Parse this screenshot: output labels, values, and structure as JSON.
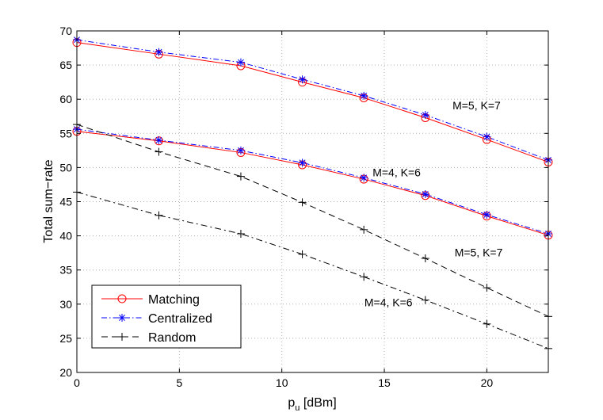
{
  "chart_data": {
    "type": "line",
    "xlabel": "p",
    "xlabel_sub": "u",
    "xlabel_unit": "[dBm]",
    "ylabel": "Total sum−rate",
    "xlim": [
      0,
      23
    ],
    "ylim": [
      20,
      70
    ],
    "xticks": [
      0,
      5,
      10,
      15,
      20
    ],
    "yticks": [
      20,
      25,
      30,
      35,
      40,
      45,
      50,
      55,
      60,
      65,
      70
    ],
    "grid": true,
    "legend_position": "bottom-left",
    "legend": [
      {
        "label": "Matching",
        "style": "matching"
      },
      {
        "label": "Centralized",
        "style": "centralized"
      },
      {
        "label": "Random",
        "style": "random"
      }
    ],
    "x": [
      0,
      4,
      8,
      11,
      14,
      17,
      20,
      23
    ],
    "series": [
      {
        "style": "matching",
        "values": [
          68.3,
          66.6,
          64.9,
          62.5,
          60.2,
          57.3,
          54.1,
          50.8
        ]
      },
      {
        "style": "centralized",
        "values": [
          68.7,
          66.9,
          65.4,
          62.9,
          60.5,
          57.7,
          54.5,
          51.1
        ]
      },
      {
        "style": "matching",
        "values": [
          55.3,
          53.9,
          52.2,
          50.4,
          48.3,
          45.9,
          42.9,
          40.1
        ]
      },
      {
        "style": "centralized",
        "values": [
          55.6,
          54.0,
          52.5,
          50.7,
          48.5,
          46.1,
          43.1,
          40.3
        ]
      },
      {
        "style": "random_dashed",
        "values": [
          56.3,
          52.3,
          48.7,
          44.9,
          40.9,
          36.7,
          32.4,
          28.2
        ]
      },
      {
        "style": "random_dashdot",
        "values": [
          46.4,
          43.0,
          40.3,
          37.3,
          34.0,
          30.6,
          27.1,
          23.5
        ]
      }
    ],
    "annotations": [
      {
        "text": "M=5, K=7",
        "x": 19.5,
        "y": 58.5
      },
      {
        "text": "M=4, K=6",
        "x": 15.6,
        "y": 48.7
      },
      {
        "text": "M=5, K=7",
        "x": 19.6,
        "y": 37.0
      },
      {
        "text": "M=4, K=6",
        "x": 15.2,
        "y": 29.7
      }
    ],
    "colors": {
      "matching": "#ff0000",
      "centralized": "#0000ff",
      "random": "#000000",
      "axis": "#000000",
      "grid": "#b0b0b0"
    }
  }
}
